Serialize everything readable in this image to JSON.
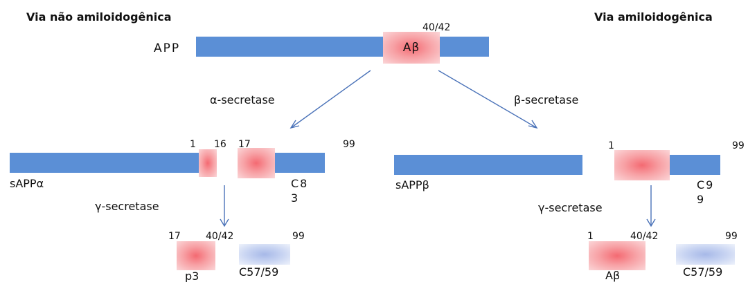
{
  "titles": {
    "non_amyloidogenic": "Via não amiloidogênica",
    "amyloidogenic": "Via amiloidogênica"
  },
  "app": {
    "label": "APP",
    "abeta_label": "Aβ",
    "range_label": "40/42"
  },
  "enzymes": {
    "alpha": "α-secretase",
    "beta": "β-secretase",
    "gamma_left": "γ-secretase",
    "gamma_right": "γ-secretase"
  },
  "left_products": {
    "sappa": "sAPPα",
    "c83_line1": "C8",
    "c83_line2": "3",
    "num_1": "1",
    "num_16": "16",
    "num_17": "17",
    "num_99": "99"
  },
  "right_products": {
    "sappb": "sAPPβ",
    "c99_line1": "C9",
    "c99_line2": "9",
    "num_1": "1",
    "num_99": "99"
  },
  "left_fragments": {
    "num_17": "17",
    "num_4042": "40/42",
    "num_99": "99",
    "p3": "p3",
    "c57": "C57/59"
  },
  "right_fragments": {
    "num_1": "1",
    "num_4042": "40/42",
    "num_99": "99",
    "abeta": "Aβ",
    "c57": "C57/59"
  },
  "colors": {
    "bar": "#5b8fd6",
    "abeta_box": "#f46a72",
    "c_fragment_box": "#a7b9e8",
    "arrow": "#4a72b8"
  }
}
